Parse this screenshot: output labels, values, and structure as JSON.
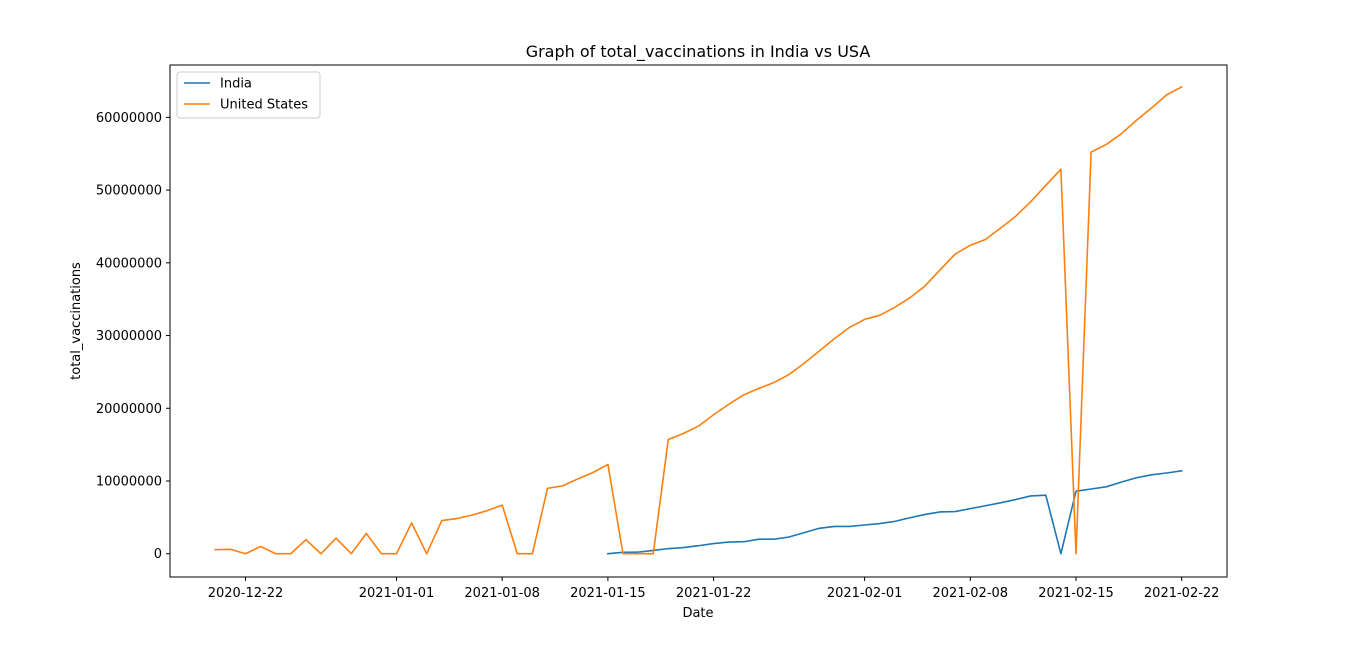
{
  "chart_data": {
    "type": "line",
    "title": "Graph of total_vaccinations in India vs USA",
    "xlabel": "Date",
    "ylabel": "total_vaccinations",
    "x_tick_labels": [
      "2020-12-22",
      "2021-01-01",
      "2021-01-08",
      "2021-01-15",
      "2021-01-22",
      "2021-02-01",
      "2021-02-08",
      "2021-02-15",
      "2021-02-22"
    ],
    "x_range": [
      "2020-12-17",
      "2021-02-25"
    ],
    "y_ticks": [
      0,
      10000000,
      20000000,
      30000000,
      40000000,
      50000000,
      60000000
    ],
    "y_tick_labels": [
      "0",
      "10000000",
      "20000000",
      "30000000",
      "40000000",
      "50000000",
      "60000000"
    ],
    "ylim": [
      -3200000,
      67200000
    ],
    "legend_position": "top-left",
    "series": [
      {
        "name": "India",
        "color": "#1f77b4",
        "points": [
          [
            "2021-01-15",
            0
          ],
          [
            "2021-01-16",
            190000
          ],
          [
            "2021-01-17",
            220000
          ],
          [
            "2021-01-18",
            450000
          ],
          [
            "2021-01-19",
            700000
          ],
          [
            "2021-01-20",
            850000
          ],
          [
            "2021-01-21",
            1100000
          ],
          [
            "2021-01-22",
            1400000
          ],
          [
            "2021-01-23",
            1600000
          ],
          [
            "2021-01-24",
            1650000
          ],
          [
            "2021-01-25",
            2000000
          ],
          [
            "2021-01-26",
            2000000
          ],
          [
            "2021-01-27",
            2300000
          ],
          [
            "2021-01-28",
            2900000
          ],
          [
            "2021-01-29",
            3500000
          ],
          [
            "2021-01-30",
            3750000
          ],
          [
            "2021-01-31",
            3750000
          ],
          [
            "2021-02-01",
            3950000
          ],
          [
            "2021-02-02",
            4150000
          ],
          [
            "2021-02-03",
            4450000
          ],
          [
            "2021-02-04",
            4950000
          ],
          [
            "2021-02-05",
            5400000
          ],
          [
            "2021-02-06",
            5750000
          ],
          [
            "2021-02-07",
            5800000
          ],
          [
            "2021-02-08",
            6200000
          ],
          [
            "2021-02-09",
            6600000
          ],
          [
            "2021-02-10",
            7000000
          ],
          [
            "2021-02-11",
            7450000
          ],
          [
            "2021-02-12",
            7950000
          ],
          [
            "2021-02-13",
            8050000
          ],
          [
            "2021-02-14",
            0
          ],
          [
            "2021-02-15",
            8600000
          ],
          [
            "2021-02-16",
            8900000
          ],
          [
            "2021-02-17",
            9200000
          ],
          [
            "2021-02-18",
            9850000
          ],
          [
            "2021-02-19",
            10450000
          ],
          [
            "2021-02-20",
            10850000
          ],
          [
            "2021-02-21",
            11100000
          ],
          [
            "2021-02-22",
            11400000
          ]
        ]
      },
      {
        "name": "United States",
        "color": "#ff7f0e",
        "points": [
          [
            "2020-12-20",
            560000
          ],
          [
            "2020-12-21",
            610000
          ],
          [
            "2020-12-22",
            0
          ],
          [
            "2020-12-23",
            1000000
          ],
          [
            "2020-12-24",
            0
          ],
          [
            "2020-12-25",
            0
          ],
          [
            "2020-12-26",
            1950000
          ],
          [
            "2020-12-27",
            0
          ],
          [
            "2020-12-28",
            2130000
          ],
          [
            "2020-12-29",
            0
          ],
          [
            "2020-12-30",
            2790000
          ],
          [
            "2020-12-31",
            0
          ],
          [
            "2021-01-01",
            0
          ],
          [
            "2021-01-02",
            4230000
          ],
          [
            "2021-01-03",
            0
          ],
          [
            "2021-01-04",
            4560000
          ],
          [
            "2021-01-05",
            4840000
          ],
          [
            "2021-01-06",
            5310000
          ],
          [
            "2021-01-07",
            5920000
          ],
          [
            "2021-01-08",
            6690000
          ],
          [
            "2021-01-09",
            0
          ],
          [
            "2021-01-10",
            0
          ],
          [
            "2021-01-11",
            8990000
          ],
          [
            "2021-01-12",
            9330000
          ],
          [
            "2021-01-13",
            10280000
          ],
          [
            "2021-01-14",
            11150000
          ],
          [
            "2021-01-15",
            12280000
          ],
          [
            "2021-01-16",
            0
          ],
          [
            "2021-01-17",
            0
          ],
          [
            "2021-01-18",
            0
          ],
          [
            "2021-01-19",
            15710000
          ],
          [
            "2021-01-20",
            16530000
          ],
          [
            "2021-01-21",
            17550000
          ],
          [
            "2021-01-22",
            19110000
          ],
          [
            "2021-01-23",
            20540000
          ],
          [
            "2021-01-24",
            21850000
          ],
          [
            "2021-01-25",
            22730000
          ],
          [
            "2021-01-26",
            23540000
          ],
          [
            "2021-01-27",
            24650000
          ],
          [
            "2021-01-28",
            26190000
          ],
          [
            "2021-01-29",
            27880000
          ],
          [
            "2021-01-30",
            29580000
          ],
          [
            "2021-01-31",
            31120000
          ],
          [
            "2021-02-01",
            32220000
          ],
          [
            "2021-02-02",
            32780000
          ],
          [
            "2021-02-03",
            33880000
          ],
          [
            "2021-02-04",
            35200000
          ],
          [
            "2021-02-05",
            36820000
          ],
          [
            "2021-02-06",
            39040000
          ],
          [
            "2021-02-07",
            41210000
          ],
          [
            "2021-02-08",
            42420000
          ],
          [
            "2021-02-09",
            43210000
          ],
          [
            "2021-02-10",
            44770000
          ],
          [
            "2021-02-11",
            46390000
          ],
          [
            "2021-02-12",
            48410000
          ],
          [
            "2021-02-13",
            50640000
          ],
          [
            "2021-02-14",
            52880000
          ],
          [
            "2021-02-15",
            0
          ],
          [
            "2021-02-16",
            55220000
          ],
          [
            "2021-02-17",
            56280000
          ],
          [
            "2021-02-18",
            57740000
          ],
          [
            "2021-02-19",
            59590000
          ],
          [
            "2021-02-20",
            61280000
          ],
          [
            "2021-02-21",
            63090000
          ],
          [
            "2021-02-22",
            64180000
          ]
        ]
      }
    ]
  }
}
